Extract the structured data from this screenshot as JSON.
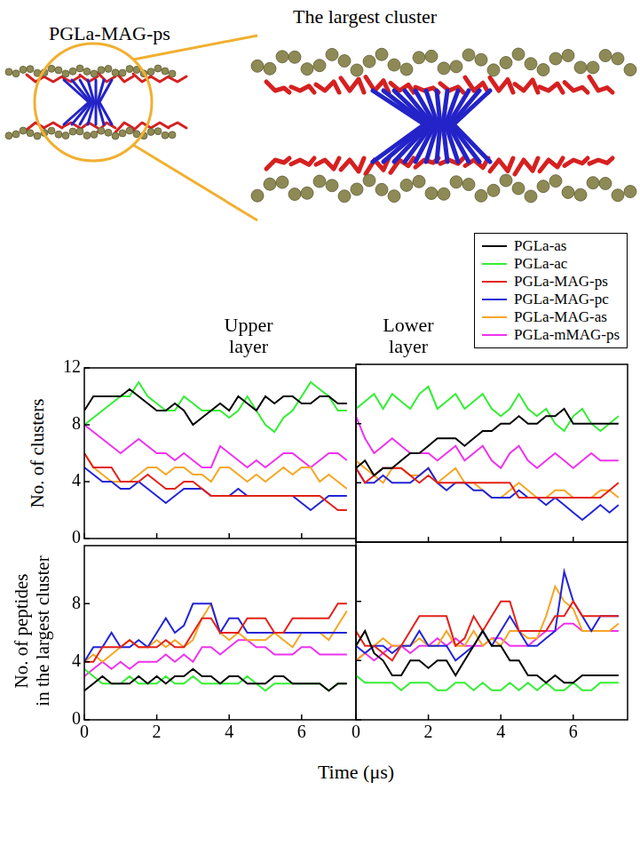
{
  "illustration": {
    "label": "PGLa-MAG-ps",
    "zoom_title": "The largest cluster"
  },
  "x_label": "Time (μs)",
  "chart_data": [
    {
      "type": "line",
      "title": "Upper layer",
      "y_label": "No. of clusters",
      "xlim": [
        0,
        7.5
      ],
      "xticks": [
        0,
        2,
        4,
        6
      ],
      "ylim": [
        0,
        12
      ],
      "yticks": [
        0,
        4,
        8,
        12
      ],
      "grid": false,
      "tick_labels": "y",
      "x": [
        0,
        0.25,
        0.5,
        0.75,
        1,
        1.25,
        1.5,
        1.75,
        2,
        2.25,
        2.5,
        2.75,
        3,
        3.25,
        3.5,
        3.75,
        4,
        4.25,
        4.5,
        4.75,
        5,
        5.25,
        5.5,
        5.75,
        6,
        6.25,
        6.5,
        6.75,
        7,
        7.25
      ],
      "series": [
        {
          "name": "PGLa-as",
          "color": "#000000",
          "values": [
            9,
            10,
            10,
            10,
            10,
            10.5,
            10,
            9.5,
            9,
            9,
            9.5,
            9,
            8,
            8.5,
            9,
            9.5,
            9,
            10,
            9.5,
            9,
            10,
            9.5,
            10,
            10,
            9.5,
            9.5,
            10,
            10,
            9.5,
            9.5
          ]
        },
        {
          "name": "PGLa-ac",
          "color": "#33ee33",
          "values": [
            8,
            8.5,
            9,
            9.5,
            10,
            10,
            11,
            10,
            9.5,
            9,
            9,
            10,
            9.5,
            9,
            9,
            9,
            8.5,
            9,
            10,
            9,
            8,
            7.5,
            8.5,
            9,
            10,
            11,
            10.5,
            10,
            9,
            9
          ]
        },
        {
          "name": "PGLa-MAG-ps",
          "color": "#e32119",
          "values": [
            6,
            5,
            5,
            5,
            4,
            4,
            4,
            4.5,
            4,
            3.5,
            3.5,
            4,
            4,
            3.5,
            3,
            3,
            3,
            3,
            3,
            3,
            3,
            3,
            3,
            3,
            3,
            3,
            3,
            2.5,
            2,
            2
          ]
        },
        {
          "name": "PGLa-MAG-pc",
          "color": "#2424d8",
          "values": [
            5,
            4.5,
            4,
            4,
            3.5,
            3.5,
            4,
            3.5,
            3,
            2.5,
            3,
            3.5,
            3.5,
            3.5,
            3,
            3,
            3,
            3.5,
            3,
            3,
            3,
            3,
            3,
            3,
            2.5,
            2,
            2.5,
            3,
            3,
            3
          ]
        },
        {
          "name": "PGLa-MAG-as",
          "color": "#f5a623",
          "values": [
            6,
            5,
            4.5,
            4,
            4,
            4,
            4.5,
            5,
            5,
            4.5,
            5,
            5,
            4.5,
            4.5,
            4,
            5,
            5,
            4.5,
            4,
            4.5,
            4,
            4.5,
            5,
            4.5,
            5,
            5,
            4,
            4.5,
            4,
            3.5
          ]
        },
        {
          "name": "PGLa-mMAG-ps",
          "color": "#ee33ee",
          "values": [
            8,
            7.5,
            7,
            6.5,
            6,
            6.5,
            7,
            6.5,
            6,
            6,
            5.5,
            6,
            5.5,
            5,
            5,
            6.5,
            6,
            5.5,
            5,
            5.5,
            5,
            5.5,
            6,
            6,
            5.5,
            5,
            5.5,
            6,
            6,
            5.5
          ]
        }
      ]
    },
    {
      "type": "line",
      "title": "Lower layer",
      "legend": "top",
      "xlim": [
        0,
        7.5
      ],
      "xticks": [
        0,
        2,
        4,
        6
      ],
      "ylim": [
        0,
        12
      ],
      "yticks": [
        0,
        4,
        8,
        12
      ],
      "grid": false,
      "tick_labels": false,
      "x": [
        0,
        0.25,
        0.5,
        0.75,
        1,
        1.25,
        1.5,
        1.75,
        2,
        2.25,
        2.5,
        2.75,
        3,
        3.25,
        3.5,
        3.75,
        4,
        4.25,
        4.5,
        4.75,
        5,
        5.25,
        5.5,
        5.75,
        6,
        6.25,
        6.5,
        6.75,
        7,
        7.25
      ],
      "series": [
        {
          "name": "PGLa-as",
          "color": "#000000",
          "values": [
            5,
            5.5,
            4.5,
            5,
            5,
            5.5,
            6,
            6,
            6.5,
            7,
            7,
            7,
            6.5,
            7,
            7.5,
            7.5,
            8,
            8,
            8.5,
            8,
            8,
            8.5,
            8.5,
            9,
            8,
            8,
            8,
            8,
            8,
            8
          ]
        },
        {
          "name": "PGLa-ac",
          "color": "#33ee33",
          "values": [
            9,
            9.5,
            10,
            9,
            10,
            9.5,
            9,
            10,
            10.5,
            9,
            9.5,
            10,
            9,
            9.5,
            10,
            9,
            8.5,
            9,
            10,
            9,
            8.5,
            9,
            8,
            7.5,
            8.5,
            9,
            8,
            7.5,
            8,
            8.5
          ]
        },
        {
          "name": "PGLa-MAG-ps",
          "color": "#e32119",
          "values": [
            5,
            4,
            4.5,
            5,
            5,
            5,
            4.5,
            4,
            4.5,
            4,
            4,
            4,
            4,
            4,
            4,
            4,
            4,
            4,
            3,
            3,
            3,
            3,
            3,
            3,
            3,
            3,
            3,
            3,
            3.5,
            4
          ]
        },
        {
          "name": "PGLa-MAG-pc",
          "color": "#2424d8",
          "values": [
            5,
            4,
            4,
            4.5,
            4,
            4,
            4,
            4.5,
            5,
            4,
            3.5,
            4,
            4,
            3.5,
            3.5,
            3,
            3,
            3,
            3.5,
            3,
            3,
            2.5,
            3,
            2.5,
            2,
            1.5,
            2,
            2.5,
            2,
            2.5
          ]
        },
        {
          "name": "PGLa-MAG-as",
          "color": "#f5a623",
          "values": [
            5.5,
            5,
            4.5,
            4,
            5,
            5,
            4.5,
            4.5,
            5,
            4,
            4.5,
            5,
            4,
            4,
            3.5,
            3,
            3,
            3.5,
            4,
            3.5,
            3,
            3,
            3.5,
            3.5,
            3,
            3,
            3,
            3.5,
            3.5,
            3
          ]
        },
        {
          "name": "PGLa-mMAG-ps",
          "color": "#ee33ee",
          "values": [
            8.5,
            7,
            6,
            6.5,
            7,
            6.5,
            6,
            6,
            6,
            5.5,
            6,
            6.5,
            5.5,
            6,
            6.5,
            5.5,
            5,
            6,
            6.5,
            5.5,
            5,
            5.5,
            6,
            5.5,
            5,
            5.5,
            6,
            5.5,
            5.5,
            5.5
          ]
        }
      ]
    },
    {
      "type": "line",
      "y_label": "No. of peptides in the largest cluster",
      "xlim": [
        0,
        7.5
      ],
      "xticks": [
        0,
        2,
        4,
        6
      ],
      "ylim": [
        0,
        12
      ],
      "yticks": [
        0,
        4,
        8
      ],
      "grid": false,
      "x": [
        0,
        0.25,
        0.5,
        0.75,
        1,
        1.25,
        1.5,
        1.75,
        2,
        2.25,
        2.5,
        2.75,
        3,
        3.25,
        3.5,
        3.75,
        4,
        4.25,
        4.5,
        4.75,
        5,
        5.25,
        5.5,
        5.75,
        6,
        6.25,
        6.5,
        6.75,
        7,
        7.25
      ],
      "series": [
        {
          "name": "PGLa-as",
          "color": "#000000",
          "values": [
            2,
            2.5,
            3,
            2.5,
            2.5,
            2.5,
            3,
            2.5,
            3,
            2.5,
            3,
            3,
            3.5,
            3,
            3,
            2.5,
            3,
            3,
            2.5,
            2.5,
            2.5,
            3,
            3,
            2.5,
            2.5,
            2.5,
            2.5,
            2,
            2.5,
            2.5
          ]
        },
        {
          "name": "PGLa-ac",
          "color": "#33ee33",
          "values": [
            3.5,
            3,
            2.5,
            2.5,
            2.5,
            3,
            2.5,
            2.5,
            2.5,
            3,
            2.5,
            2.5,
            3,
            2.5,
            2.5,
            2.5,
            2.5,
            2.5,
            3,
            2.5,
            2,
            2.5,
            2.5,
            2.5,
            2.5,
            2.5,
            2.5,
            2,
            2.5,
            2.5
          ]
        },
        {
          "name": "PGLa-MAG-ps",
          "color": "#e32119",
          "values": [
            4,
            4,
            5,
            5,
            5,
            5.5,
            5,
            5,
            5,
            5.5,
            5,
            5,
            6,
            7,
            7,
            6,
            6,
            6,
            7,
            7,
            7,
            6,
            6,
            7,
            7,
            7,
            7,
            7,
            8,
            8
          ]
        },
        {
          "name": "PGLa-MAG-pc",
          "color": "#2424d8",
          "values": [
            4,
            5,
            5,
            6,
            5,
            5,
            5.5,
            5,
            6,
            7,
            6,
            6.5,
            8,
            8,
            8,
            6,
            7,
            7,
            6,
            6,
            6,
            6,
            6,
            6,
            6,
            6,
            6,
            6,
            6,
            6
          ]
        },
        {
          "name": "PGLa-MAG-as",
          "color": "#f5a623",
          "values": [
            4,
            4.5,
            4,
            4.5,
            5,
            5.5,
            5,
            5,
            5.5,
            5,
            5.5,
            5,
            5.5,
            7,
            8,
            6,
            5.5,
            6,
            5.5,
            5.5,
            5.5,
            6,
            5.5,
            5,
            6,
            6,
            6,
            5.5,
            6.5,
            7.5
          ]
        },
        {
          "name": "PGLa-mMAG-ps",
          "color": "#ee33ee",
          "values": [
            3,
            3.5,
            4,
            3.5,
            4,
            3.5,
            4,
            4,
            4,
            4.5,
            4,
            4.5,
            4,
            5,
            5,
            4.5,
            5,
            5.5,
            5.5,
            5,
            5,
            4.5,
            4.5,
            4.5,
            5,
            5,
            4.5,
            4.5,
            4.5,
            4.5
          ]
        }
      ]
    },
    {
      "type": "line",
      "xlim": [
        0,
        7.5
      ],
      "xticks": [
        0,
        2,
        4,
        6
      ],
      "ylim": [
        0,
        12
      ],
      "yticks": [
        0,
        4,
        8
      ],
      "grid": false,
      "tick_labels": "x",
      "x": [
        0,
        0.25,
        0.5,
        0.75,
        1,
        1.25,
        1.5,
        1.75,
        2,
        2.25,
        2.5,
        2.75,
        3,
        3.25,
        3.5,
        3.75,
        4,
        4.25,
        4.5,
        4.75,
        5,
        5.25,
        5.5,
        5.75,
        6,
        6.25,
        6.5,
        6.75,
        7,
        7.25
      ],
      "series": [
        {
          "name": "PGLa-as",
          "color": "#000000",
          "values": [
            5,
            6,
            4.5,
            4,
            3,
            3,
            4,
            4,
            3.5,
            4,
            4,
            3,
            4,
            5,
            6,
            5,
            5,
            4,
            4,
            3,
            3,
            2.5,
            3,
            2.5,
            2.5,
            3,
            3,
            3,
            3,
            3
          ]
        },
        {
          "name": "PGLa-ac",
          "color": "#33ee33",
          "values": [
            3,
            2.5,
            2.5,
            2.5,
            2.5,
            2,
            2.5,
            2.5,
            2.5,
            2,
            2,
            2.5,
            2.5,
            2,
            2.5,
            2,
            2,
            2.5,
            2,
            2.5,
            2,
            2.5,
            2,
            2,
            2.5,
            2,
            2,
            2.5,
            2.5,
            2.5
          ]
        },
        {
          "name": "PGLa-MAG-ps",
          "color": "#e32119",
          "values": [
            6,
            5,
            5,
            4.5,
            4,
            5,
            6,
            7,
            7,
            7,
            7,
            5,
            5.5,
            7,
            6,
            7,
            8,
            8,
            6,
            6,
            6,
            6,
            7,
            7,
            8,
            7,
            7,
            7,
            7,
            7
          ]
        },
        {
          "name": "PGLa-MAG-pc",
          "color": "#2424d8",
          "values": [
            5,
            4.5,
            5,
            5,
            4.5,
            5,
            5,
            6,
            5,
            5,
            5,
            4,
            4.5,
            5,
            6,
            5,
            6,
            7,
            6,
            5,
            5,
            5.5,
            6,
            10,
            8,
            7,
            6,
            7,
            7,
            7
          ]
        },
        {
          "name": "PGLa-MAG-as",
          "color": "#f5a623",
          "values": [
            4,
            4.5,
            5,
            5.5,
            5,
            5,
            5,
            5.5,
            5,
            5,
            6,
            5,
            5,
            6,
            5,
            5.5,
            5,
            6,
            6,
            5.5,
            5.5,
            7,
            9,
            8,
            7.5,
            6,
            6,
            6,
            6,
            6.5
          ]
        },
        {
          "name": "PGLa-mMAG-ps",
          "color": "#ee33ee",
          "values": [
            4,
            4.5,
            4,
            4.5,
            5,
            5,
            4.5,
            5,
            5,
            5.5,
            5,
            5.5,
            5,
            5,
            5,
            5.5,
            5.5,
            5,
            5,
            5,
            5.5,
            6,
            6,
            6.5,
            6.5,
            6,
            6,
            6,
            6,
            6
          ]
        }
      ]
    }
  ]
}
